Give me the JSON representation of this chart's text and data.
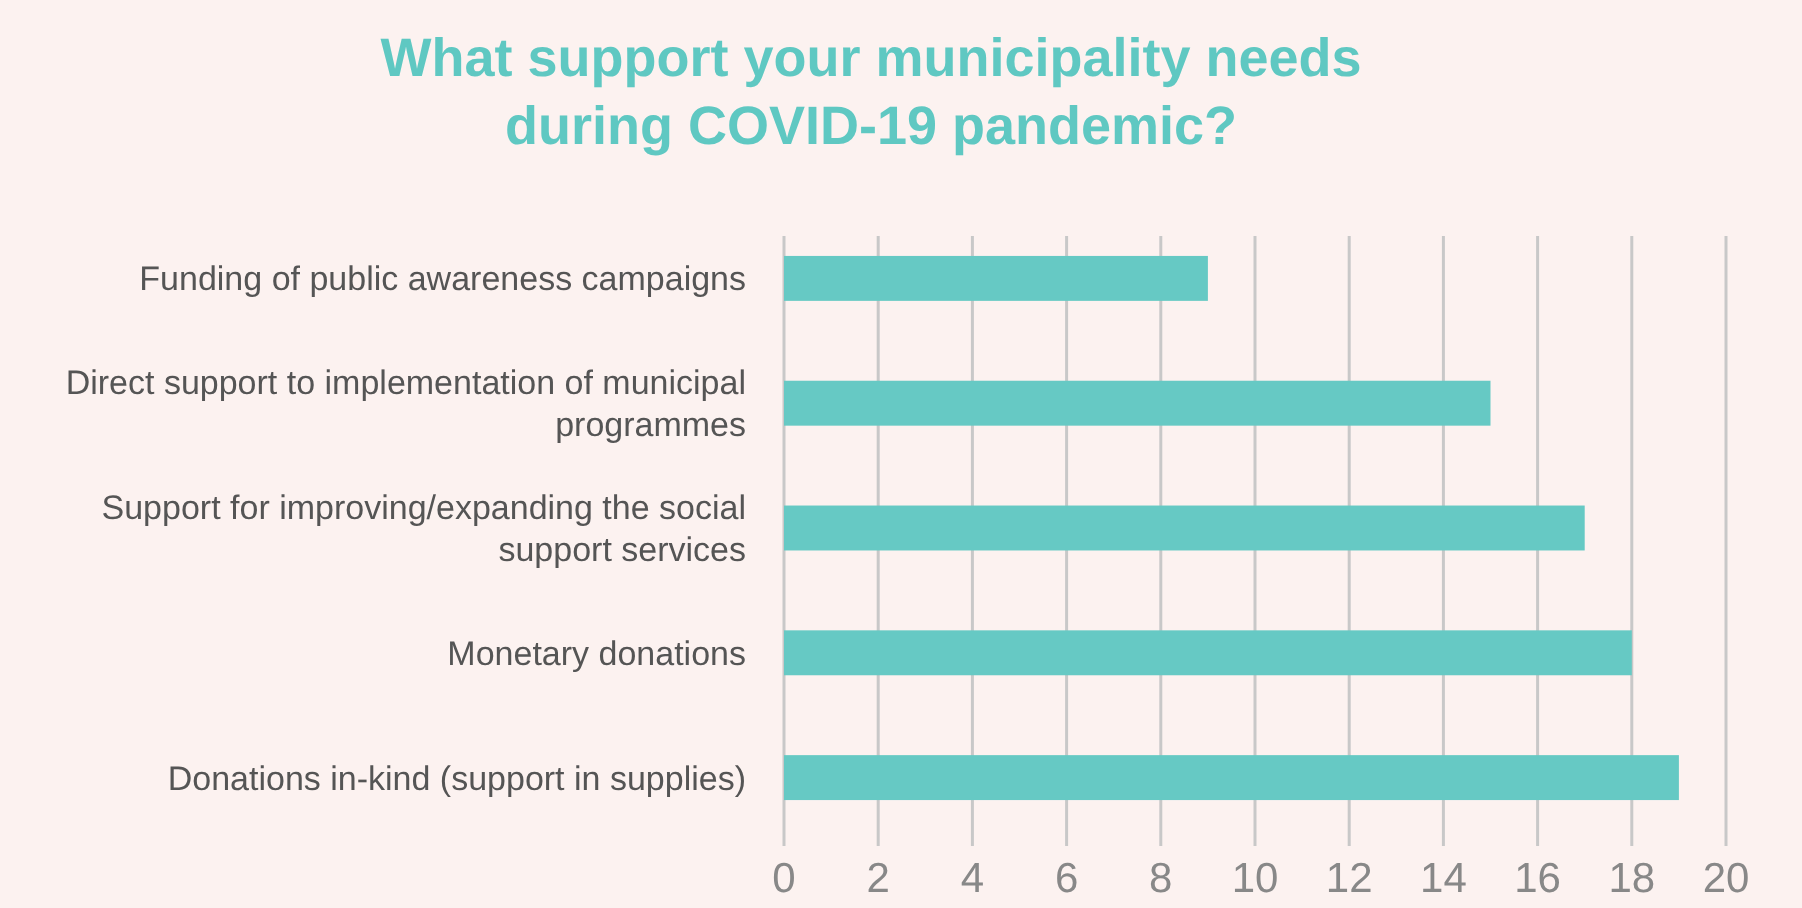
{
  "chart_data": {
    "type": "bar",
    "orientation": "horizontal",
    "title": "What support your municipality needs during COVID-19 pandemic?",
    "categories": [
      "Funding of public awareness campaigns",
      "Direct support to implementation of municipal programmes",
      "Support for improving/expanding the social support services",
      "Monetary donations",
      "Donations in-kind (support in supplies)"
    ],
    "values": [
      9,
      15,
      17,
      18,
      19
    ],
    "color": "#66c9c4",
    "xlim": [
      0,
      20
    ],
    "xticks": [
      0,
      2,
      4,
      6,
      8,
      10,
      12,
      14,
      16,
      18,
      20
    ],
    "grid": "x"
  }
}
